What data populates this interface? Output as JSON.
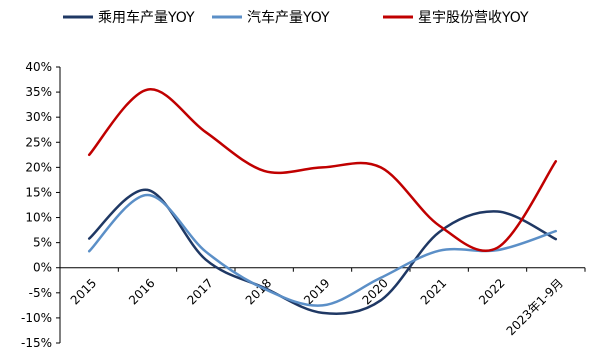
{
  "chart_data": {
    "type": "line",
    "categories": [
      "2015",
      "2016",
      "2017",
      "2018",
      "2019",
      "2020",
      "2021",
      "2022",
      "2023年1-9月"
    ],
    "y_ticks": [
      "40%",
      "35%",
      "30%",
      "25%",
      "20%",
      "15%",
      "10%",
      "5%",
      "0%",
      "-5%",
      "-10%",
      "-15%"
    ],
    "ylim": [
      -15,
      40
    ],
    "unit": "%",
    "grid": false,
    "legend_position": "top",
    "series": [
      {
        "name": "乘用车产量YOY",
        "color": "#1f3864",
        "values": [
          5.8,
          15.5,
          1.6,
          -4.0,
          -9.0,
          -6.5,
          7.1,
          11.2,
          5.7
        ]
      },
      {
        "name": "汽车产量YOY",
        "color": "#5b8fc7",
        "values": [
          3.3,
          14.5,
          3.2,
          -4.2,
          -7.5,
          -2.0,
          3.4,
          3.5,
          7.3
        ]
      },
      {
        "name": "星宇股份营收YOY",
        "color": "#c00000",
        "values": [
          22.5,
          35.5,
          27.0,
          19.3,
          20.0,
          20.0,
          8.4,
          4.0,
          21.2
        ]
      }
    ]
  }
}
